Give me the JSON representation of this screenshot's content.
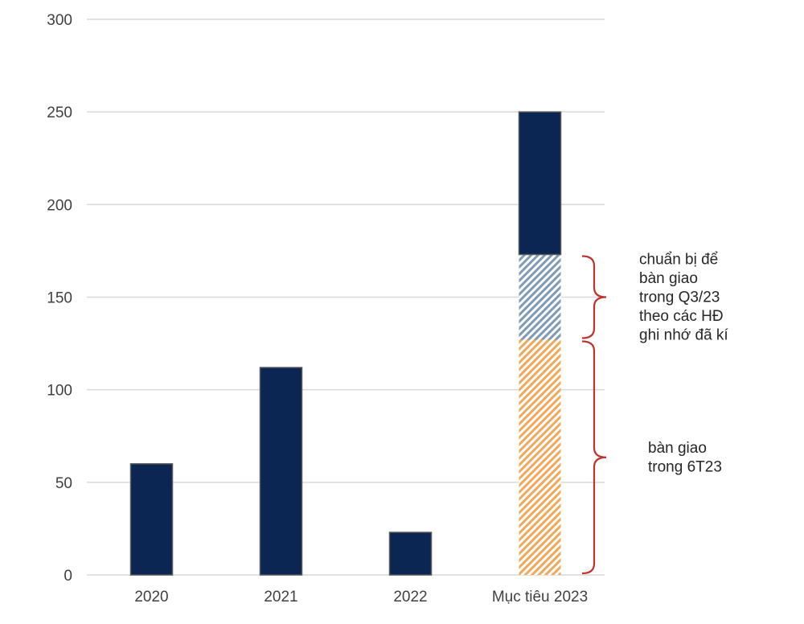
{
  "chart_data": {
    "type": "bar",
    "stacked": true,
    "categories": [
      "2020",
      "2021",
      "2022",
      "Mục tiêu 2023"
    ],
    "series": [
      {
        "values": [
          0,
          0,
          0,
          127
        ],
        "color": "#f0a85a",
        "pattern": "diagonal-hatch"
      },
      {
        "values": [
          0,
          0,
          0,
          46
        ],
        "color": "#7f9bb5",
        "pattern": "diagonal-hatch"
      },
      {
        "values": [
          60,
          112,
          23,
          77
        ],
        "color": "#0b2653",
        "pattern": "solid"
      }
    ],
    "ylim": [
      0,
      300
    ],
    "yticks": [
      "0",
      "50",
      "100",
      "150",
      "200",
      "250",
      "300"
    ],
    "grid": true,
    "legend": "none",
    "annotations": [
      {
        "lines": [
          "chuẩn bị để",
          "bàn giao",
          "trong Q3/23",
          "theo các HĐ",
          "ghi nhớ đã kí"
        ],
        "range": [
          127,
          173
        ]
      },
      {
        "lines": [
          "bàn giao",
          "trong 6T23"
        ],
        "range": [
          0,
          127
        ]
      }
    ],
    "colors": {
      "brace": "#c0322b",
      "grid": "#d9d9d9",
      "bar_outline": "#595959"
    }
  }
}
